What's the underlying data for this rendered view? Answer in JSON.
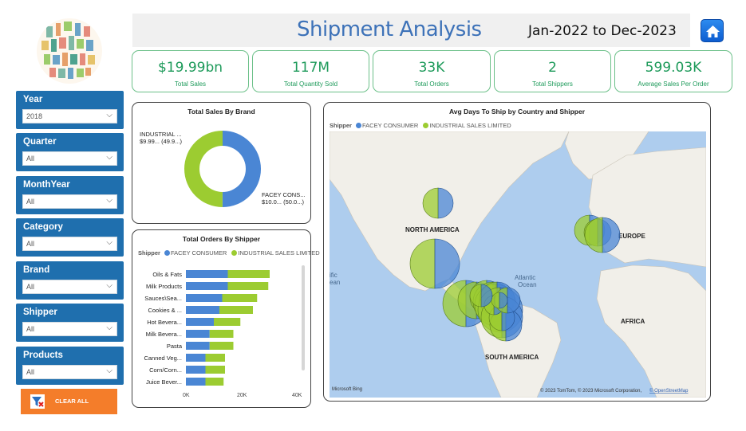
{
  "header": {
    "title": "Shipment Analysis",
    "date_range": "Jan-2022 to Dec-2023",
    "home_icon": "home-icon"
  },
  "kpis": [
    {
      "value": "$19.99bn",
      "label": "Total Sales"
    },
    {
      "value": "117M",
      "label": "Total Quantity Sold"
    },
    {
      "value": "33K",
      "label": "Total Orders"
    },
    {
      "value": "2",
      "label": "Total Shippers"
    },
    {
      "value": "599.03K",
      "label": "Average Sales Per Order"
    }
  ],
  "slicers": [
    {
      "title": "Year",
      "value": "2018"
    },
    {
      "title": "Quarter",
      "value": "All"
    },
    {
      "title": "MonthYear",
      "value": "All"
    },
    {
      "title": "Category",
      "value": "All"
    },
    {
      "title": "Brand",
      "value": "All"
    },
    {
      "title": "Shipper",
      "value": "All"
    },
    {
      "title": "Products",
      "value": "All"
    }
  ],
  "clear_button": {
    "label": "CLEAR ALL",
    "icon": "clear-filter-icon"
  },
  "colors": {
    "blue": "#4a86d4",
    "green": "#9ccc31",
    "kpi_green": "#1d9a5a",
    "slicer_blue": "#1f6fae",
    "orange": "#f47d2a"
  },
  "donut": {
    "title": "Total Sales By Brand",
    "slices": [
      {
        "name": "FACEY CONS...",
        "label": "FACEY CONS...",
        "detail": "$10.0... (50.0...)",
        "pct": 50.05,
        "color": "#4a86d4"
      },
      {
        "name": "INDUSTRIAL ...",
        "label": "INDUSTRIAL ...",
        "detail": "$9.99... (49.9...)",
        "pct": 49.95,
        "color": "#9ccc31"
      }
    ]
  },
  "bar_chart": {
    "title": "Total Orders By Shipper",
    "legend_title": "Shipper",
    "series_names": [
      "FACEY CONSUMER",
      "INDUSTRIAL SALES LIMITED"
    ],
    "axis_ticks": [
      "0K",
      "20K",
      "40K"
    ]
  },
  "chart_data": {
    "type": "bar",
    "orientation": "horizontal-stacked",
    "title": "Total Orders By Shipper",
    "categories": [
      "Oils & Fats",
      "Milk Products",
      "Sauces\\Sea...",
      "Cookies & ...",
      "Hot Bevera...",
      "Milk Bevera...",
      "Pasta",
      "Canned Veg...",
      "Corn/Corn...",
      "Juice Bever..."
    ],
    "series": [
      {
        "name": "FACEY CONSUMER",
        "values": [
          15000,
          15000,
          13000,
          12000,
          10000,
          8500,
          8500,
          7000,
          7000,
          7000
        ]
      },
      {
        "name": "INDUSTRIAL SALES LIMITED",
        "values": [
          15000,
          14500,
          12500,
          12000,
          9500,
          8500,
          8500,
          7000,
          7000,
          6500
        ]
      }
    ],
    "xlim": [
      0,
      40000
    ],
    "legend": "top-left"
  },
  "map": {
    "title": "Avg Days To Ship by Country and Shipper",
    "legend_title": "Shipper",
    "series_names": [
      "FACEY CONSUMER",
      "INDUSTRIAL SALES LIMITED"
    ],
    "labels": {
      "north_america": "NORTH AMERICA",
      "europe": "EUROPE",
      "africa": "AFRICA",
      "south_america": "SOUTH AMERICA"
    },
    "ocean": "Atlantic\nOcean",
    "pacific_left": "ific\nean",
    "bing": "Microsoft Bing",
    "copyright": "© 2023 TomTom, © 2023 Microsoft Corporation,",
    "osm": "© OpenStreetMap"
  }
}
